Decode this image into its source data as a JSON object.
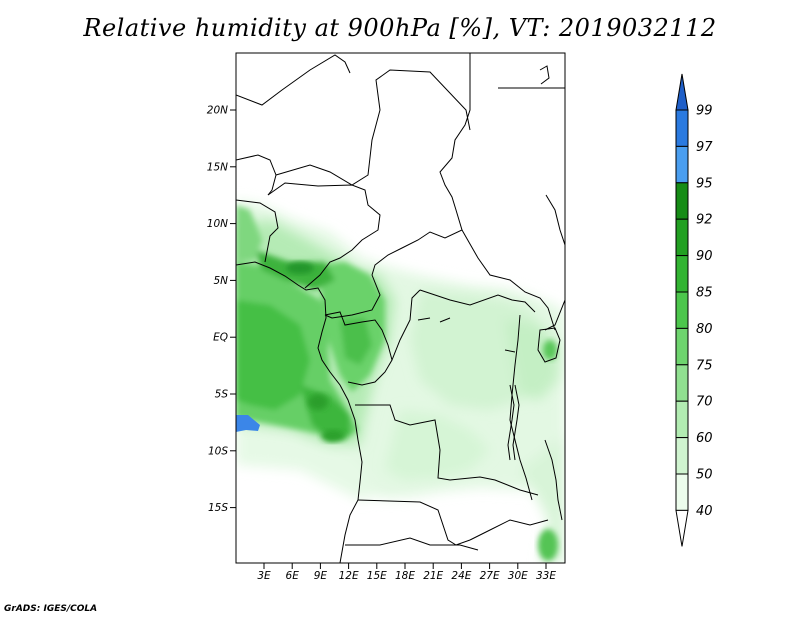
{
  "title": "Relative humidity at 900hPa [%], VT: 2019032112",
  "footer": "GrADS: IGES/COLA",
  "map": {
    "lat_labels": [
      "20N",
      "15N",
      "10N",
      "5N",
      "EQ",
      "5S",
      "10S",
      "15S"
    ],
    "lon_labels": [
      "3E",
      "6E",
      "9E",
      "12E",
      "15E",
      "18E",
      "21E",
      "24E",
      "27E",
      "30E",
      "33E"
    ]
  },
  "colorbar": {
    "levels": [
      "99",
      "97",
      "95",
      "92",
      "90",
      "85",
      "80",
      "75",
      "70",
      "60",
      "50",
      "40"
    ],
    "colors": [
      "#1f5fc8",
      "#2a7ae0",
      "#4a9ef0",
      "#168c16",
      "#22a022",
      "#32b432",
      "#4cc64c",
      "#6ed46e",
      "#90e090",
      "#b2ecb2",
      "#d0f4d0",
      "#ecfcec",
      "#ffffff"
    ]
  }
}
